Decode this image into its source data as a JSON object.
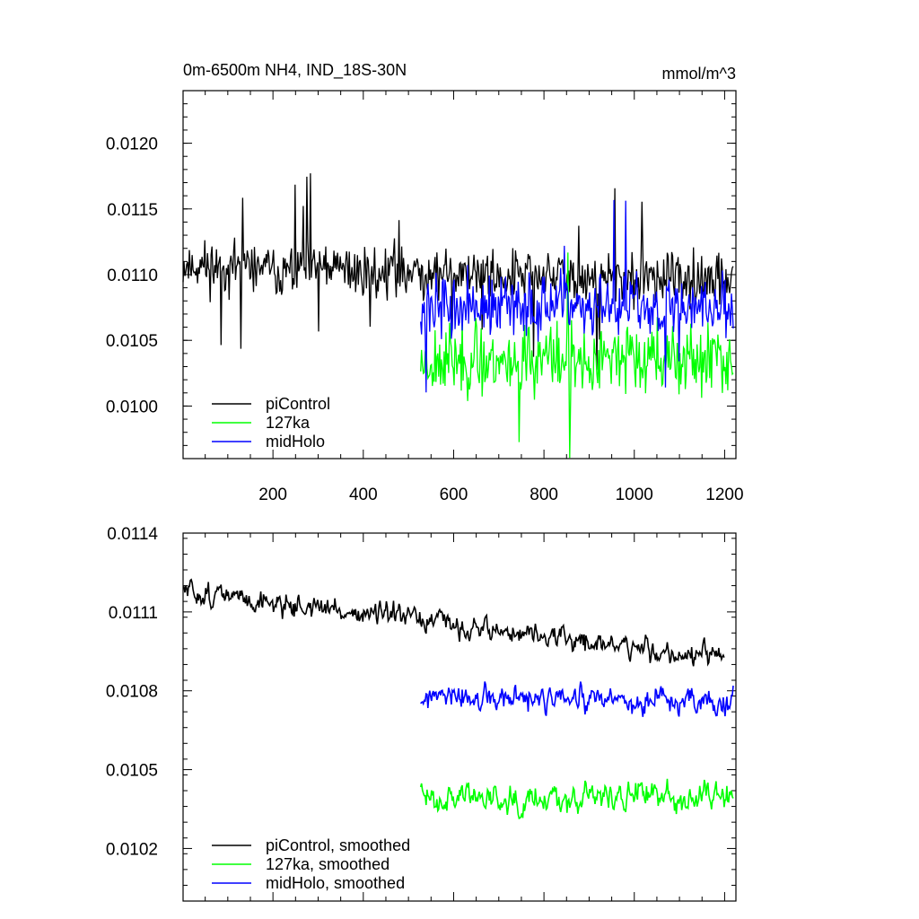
{
  "chart_data": [
    {
      "type": "line",
      "title": "0m-6500m NH4, IND_18S-30N",
      "units": "mmol/m^3",
      "xlim": [
        1,
        1225
      ],
      "ylim": [
        0.0096,
        0.0124
      ],
      "xticks": [
        200,
        400,
        600,
        800,
        1000,
        1200
      ],
      "xticklabels": [
        "200",
        "400",
        "600",
        "800",
        "1000",
        "1200"
      ],
      "yticks": [
        0.01,
        0.0105,
        0.011,
        0.0115,
        0.012
      ],
      "yticklabels": [
        "0.0100",
        "0.0105",
        "0.0110",
        "0.0115",
        "0.0120"
      ],
      "grid": false,
      "legend_position": "bottom-left",
      "series": [
        {
          "name": "piControl",
          "color": "#000000",
          "x_range": [
            1,
            1220
          ],
          "mean": 0.01107,
          "mean_end": 0.01095,
          "noise": 0.0003,
          "seed": 11
        },
        {
          "name": "127ka",
          "color": "#00ff00",
          "x_range": [
            527,
            1220
          ],
          "mean": 0.01035,
          "mean_end": 0.01035,
          "noise": 0.0004,
          "seed": 23
        },
        {
          "name": "midHolo",
          "color": "#0000ff",
          "x_range": [
            527,
            1220
          ],
          "mean": 0.01075,
          "mean_end": 0.01075,
          "noise": 0.00035,
          "seed": 37
        }
      ]
    },
    {
      "type": "line",
      "xlim": [
        1,
        1225
      ],
      "ylim": [
        0.01,
        0.0114
      ],
      "xticks": [
        200,
        400,
        600,
        800,
        1000,
        1200
      ],
      "yticks": [
        0.0102,
        0.0105,
        0.0108,
        0.0111,
        0.0114
      ],
      "yticklabels": [
        "0.0102",
        "0.0105",
        "0.0108",
        "0.0111",
        "0.0114"
      ],
      "grid": false,
      "legend_position": "bottom-left",
      "series": [
        {
          "name": "piControl, smoothed",
          "color": "#000000",
          "x_range": [
            1,
            1200
          ],
          "mean": 0.01118,
          "mean_end": 0.01092,
          "noise": 8e-05,
          "seed": 51
        },
        {
          "name": "127ka, smoothed",
          "color": "#00ff00",
          "x_range": [
            527,
            1220
          ],
          "mean": 0.0104,
          "mean_end": 0.0104,
          "noise": 0.0001,
          "seed": 63
        },
        {
          "name": "midHolo, smoothed",
          "color": "#0000ff",
          "x_range": [
            527,
            1220
          ],
          "mean": 0.01077,
          "mean_end": 0.01075,
          "noise": 9e-05,
          "seed": 77
        }
      ]
    }
  ]
}
